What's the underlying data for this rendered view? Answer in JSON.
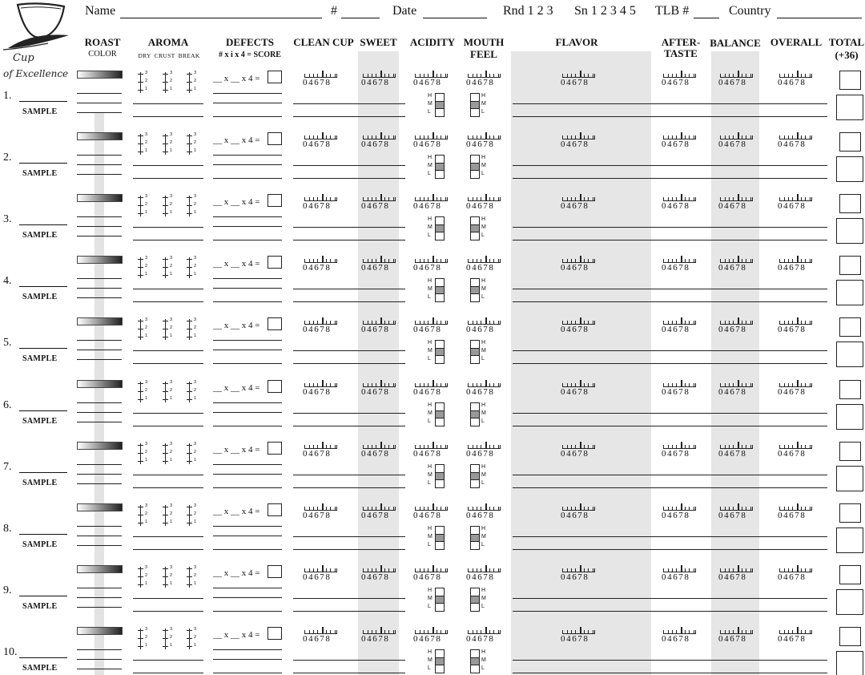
{
  "header": {
    "name_label": "Name",
    "number_label": "#",
    "date_label": "Date",
    "round_label": "Rnd 1 2 3",
    "session_label": "Sn 1 2 3 4 5",
    "tlb_label": "TLB #",
    "country_label": "Country"
  },
  "logo": {
    "line1": "Cup",
    "line2": "of Excellence"
  },
  "columns": {
    "roast": {
      "title": "ROAST",
      "sub": "COLOR"
    },
    "aroma": {
      "title": "AROMA",
      "sub": "DRY  CRUST  BREAK"
    },
    "defects": {
      "title": "DEFECTS",
      "sub": "# x i x 4 = SCORE"
    },
    "clean_cup": {
      "title": "CLEAN CUP"
    },
    "sweet": {
      "title": "SWEET"
    },
    "acidity": {
      "title": "ACIDITY"
    },
    "mouthfeel": {
      "title1": "MOUTH",
      "title2": "FEEL"
    },
    "flavor": {
      "title": "FLAVOR"
    },
    "aftertaste": {
      "title1": "AFTER-",
      "title2": "TASTE"
    },
    "balance": {
      "title": "BALANCE"
    },
    "overall": {
      "title": "OVERALL"
    },
    "total": {
      "title1": "TOTAL",
      "title2": "(+36)"
    }
  },
  "scale": {
    "labels": "04678"
  },
  "aroma_marks": {
    "n3": "3",
    "n2": "2",
    "n1": "1"
  },
  "intensity": {
    "h": "H",
    "m": "M",
    "l": "L"
  },
  "defect_formula": "__ x __ x  4 =",
  "sample_label": "SAMPLE",
  "rows": [
    {
      "number": "1."
    },
    {
      "number": "2."
    },
    {
      "number": "3."
    },
    {
      "number": "4."
    },
    {
      "number": "5."
    },
    {
      "number": "6."
    },
    {
      "number": "7."
    },
    {
      "number": "8."
    },
    {
      "number": "9."
    },
    {
      "number": "10."
    }
  ],
  "colors": {
    "band": "#e6e6e6",
    "gradient_dark": "#222222",
    "mid_cell": "#999999"
  }
}
